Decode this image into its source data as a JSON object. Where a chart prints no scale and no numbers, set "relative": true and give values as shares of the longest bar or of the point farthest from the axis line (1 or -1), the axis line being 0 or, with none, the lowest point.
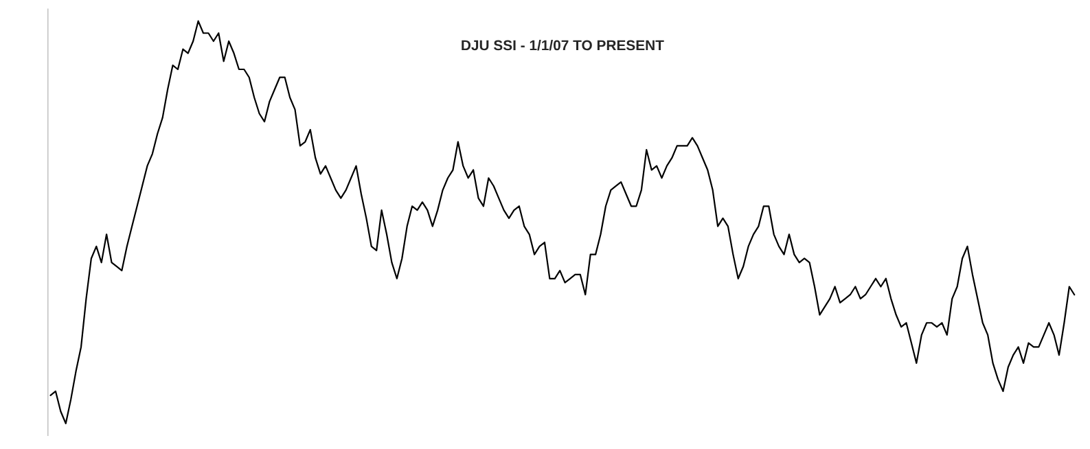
{
  "chart_data": {
    "type": "line",
    "title": "DJU SSI - 1/1/07 TO PRESENT",
    "relative": true,
    "grid": false,
    "marker": "none",
    "line_style": "solid",
    "categories": [
      null,
      null,
      null,
      null,
      null,
      null,
      null,
      null,
      null,
      null,
      null,
      null,
      null,
      null,
      null,
      null,
      null,
      null,
      null,
      null,
      null,
      null,
      null,
      null,
      null,
      null,
      null,
      null,
      null,
      null,
      null,
      null,
      null,
      null,
      null,
      null,
      null,
      null,
      null,
      null,
      null,
      null,
      null,
      null,
      null,
      null,
      null,
      null,
      null,
      null,
      null,
      null,
      null,
      null,
      null,
      null,
      null,
      null,
      null,
      null,
      null,
      null,
      null,
      null,
      null,
      null,
      null,
      null,
      null,
      null,
      null,
      null,
      null,
      null,
      null,
      null,
      null,
      null,
      null,
      null,
      null,
      null,
      null,
      null,
      null,
      null,
      null,
      null,
      null,
      null,
      null,
      null,
      null,
      null,
      null,
      null,
      null,
      null,
      null,
      null,
      null,
      null,
      null,
      null,
      null,
      null,
      null,
      null,
      null,
      null,
      null,
      null,
      null,
      null,
      null,
      null,
      null,
      null,
      null,
      null,
      null,
      null,
      null,
      null,
      null,
      null,
      null,
      null,
      null,
      null,
      null,
      null,
      null,
      null,
      null,
      null,
      null,
      null,
      null,
      null,
      null,
      null,
      null,
      null,
      null,
      null,
      null,
      null,
      null,
      null,
      null,
      null,
      null,
      null,
      null,
      null,
      null,
      null,
      null,
      null,
      null,
      null,
      null,
      null,
      null,
      null,
      null,
      null,
      null,
      null,
      null,
      null,
      null,
      null,
      null,
      null,
      null,
      null,
      null,
      null,
      null,
      null,
      null,
      null,
      null,
      null,
      null,
      null,
      null,
      null,
      null,
      null,
      null,
      null,
      null,
      null,
      null,
      null,
      null,
      null,
      null,
      null
    ],
    "series": [
      {
        "color": "#000000",
        "values": [
          0.07,
          0.08,
          0.03,
          0,
          0.06,
          0.13,
          0.19,
          0.31,
          0.41,
          0.44,
          0.4,
          0.47,
          0.4,
          0.39,
          0.38,
          0.44,
          0.49,
          0.54,
          0.59,
          0.64,
          0.67,
          0.72,
          0.76,
          0.83,
          0.89,
          0.88,
          0.93,
          0.92,
          0.95,
          1,
          0.97,
          0.97,
          0.95,
          0.97,
          0.9,
          0.95,
          0.92,
          0.88,
          0.88,
          0.86,
          0.81,
          0.77,
          0.75,
          0.8,
          0.83,
          0.86,
          0.86,
          0.81,
          0.78,
          0.69,
          0.7,
          0.73,
          0.66,
          0.62,
          0.64,
          0.61,
          0.58,
          0.56,
          0.58,
          0.61,
          0.64,
          0.57,
          0.51,
          0.44,
          0.43,
          0.53,
          0.47,
          0.4,
          0.36,
          0.41,
          0.49,
          0.54,
          0.53,
          0.55,
          0.53,
          0.49,
          0.53,
          0.58,
          0.61,
          0.63,
          0.7,
          0.64,
          0.61,
          0.63,
          0.56,
          0.54,
          0.61,
          0.59,
          0.56,
          0.53,
          0.51,
          0.53,
          0.54,
          0.49,
          0.47,
          0.42,
          0.44,
          0.45,
          0.36,
          0.36,
          0.38,
          0.35,
          0.36,
          0.37,
          0.37,
          0.32,
          0.42,
          0.42,
          0.47,
          0.54,
          0.58,
          0.59,
          0.6,
          0.57,
          0.54,
          0.54,
          0.58,
          0.68,
          0.63,
          0.64,
          0.61,
          0.64,
          0.66,
          0.69,
          0.69,
          0.69,
          0.71,
          0.69,
          0.66,
          0.63,
          0.58,
          0.49,
          0.51,
          0.49,
          0.42,
          0.36,
          0.39,
          0.44,
          0.47,
          0.49,
          0.54,
          0.54,
          0.47,
          0.44,
          0.42,
          0.47,
          0.42,
          0.4,
          0.41,
          0.4,
          0.34,
          0.27,
          0.29,
          0.31,
          0.34,
          0.3,
          0.31,
          0.32,
          0.34,
          0.31,
          0.32,
          0.34,
          0.36,
          0.34,
          0.36,
          0.31,
          0.27,
          0.24,
          0.25,
          0.2,
          0.15,
          0.22,
          0.25,
          0.25,
          0.24,
          0.25,
          0.22,
          0.31,
          0.34,
          0.41,
          0.44,
          0.37,
          0.31,
          0.25,
          0.22,
          0.15,
          0.11,
          0.08,
          0.14,
          0.17,
          0.19,
          0.15,
          0.2,
          0.19,
          0.19,
          0.22,
          0.25,
          0.22,
          0.17,
          0.25,
          0.34,
          0.32
        ]
      }
    ]
  }
}
